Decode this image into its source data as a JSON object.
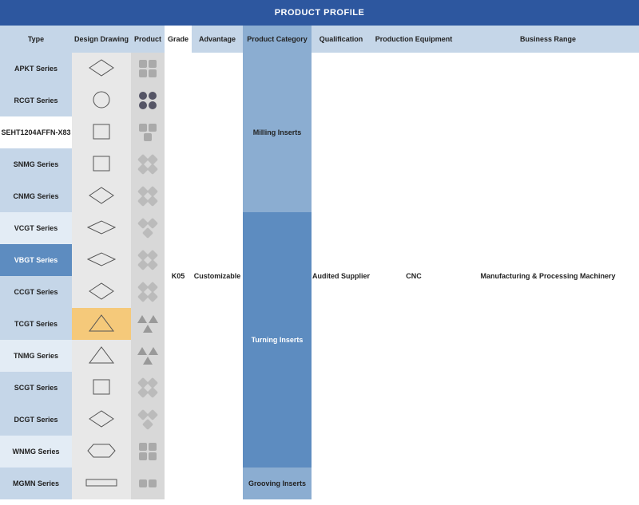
{
  "title": "PRODUCT PROFILE",
  "columns": {
    "type": "Type",
    "design": "Design Drawing",
    "product": "Product",
    "grade": "Grade",
    "advantage": "Advantage",
    "category": "Product Category",
    "qualification": "Qualification",
    "equipment": "Production Equipment",
    "business": "Business Range"
  },
  "widths": {
    "type": 90,
    "design": 74,
    "product": 42,
    "grade": 34,
    "advantage": 64,
    "category": 86,
    "qualification": 74,
    "equipment": 108,
    "business": 228
  },
  "header_bg": {
    "type": "bg-lightblue",
    "design": "bg-lightblue",
    "product": "bg-lightblue",
    "grade": "bg-white",
    "advantage": "bg-lightblue",
    "category": "bg-medblue",
    "qualification": "bg-lightblue",
    "equipment": "bg-lightblue",
    "business": "bg-lightblue"
  },
  "rows": [
    {
      "label": "APKT Series",
      "bg": "bg-lightblue",
      "shape": "rhomb",
      "pcs": [
        "sq",
        "sq",
        "sq",
        "sq"
      ]
    },
    {
      "label": "RCGT Series",
      "bg": "bg-lightblue",
      "shape": "circle",
      "pcs": [
        "round",
        "round",
        "round",
        "round"
      ]
    },
    {
      "label": "SEHT1204AFFN-X83",
      "bg": "bg-white",
      "shape": "square",
      "pcs": [
        "sq",
        "sq",
        "sq"
      ]
    },
    {
      "label": "SNMG Series",
      "bg": "bg-lightblue",
      "shape": "square",
      "pcs": [
        "dia",
        "dia",
        "dia",
        "dia"
      ]
    },
    {
      "label": "CNMG Series",
      "bg": "bg-lightblue",
      "shape": "rhomb",
      "pcs": [
        "dia",
        "dia",
        "dia",
        "dia"
      ]
    },
    {
      "label": "VCGT Series",
      "bg": "bg-vlight",
      "shape": "diamond",
      "pcs": [
        "dia",
        "dia",
        "dia"
      ]
    },
    {
      "label": "VBGT Series",
      "bg": "bg-darkblue",
      "shape": "diamond",
      "pcs": [
        "dia",
        "dia",
        "dia",
        "dia"
      ]
    },
    {
      "label": "CCGT Series",
      "bg": "bg-lightblue",
      "shape": "rhomb",
      "pcs": [
        "dia",
        "dia",
        "dia",
        "dia"
      ]
    },
    {
      "label": "TCGT Series",
      "bg": "bg-lightblue",
      "shape": "triangle",
      "pcs": [
        "tri",
        "tri",
        "tri"
      ],
      "tcgt": true
    },
    {
      "label": "TNMG Series",
      "bg": "bg-vlight",
      "shape": "triangle",
      "pcs": [
        "tri",
        "tri",
        "tri"
      ]
    },
    {
      "label": "SCGT Series",
      "bg": "bg-lightblue",
      "shape": "square",
      "pcs": [
        "dia",
        "dia",
        "dia",
        "dia"
      ]
    },
    {
      "label": "DCGT Series",
      "bg": "bg-lightblue",
      "shape": "rhomb",
      "pcs": [
        "dia",
        "dia",
        "dia"
      ]
    },
    {
      "label": "WNMG Series",
      "bg": "bg-vlight",
      "shape": "hex",
      "pcs": [
        "sq",
        "sq",
        "sq",
        "sq"
      ]
    },
    {
      "label": "MGMN Series",
      "bg": "bg-lightblue",
      "shape": "bar",
      "pcs": [
        "sq",
        "sq"
      ]
    }
  ],
  "merged": {
    "grade": "K05",
    "advantage": "Customizable",
    "qualification": "Audited Supplier",
    "equipment": "CNC",
    "business": "Manufacturing & Processing Machinery"
  },
  "categories": [
    {
      "label": "Milling Inserts",
      "rows": 5,
      "bg": "bg-medblue"
    },
    {
      "label": "Turning Inserts",
      "rows": 8,
      "bg": "bg-darkblue"
    },
    {
      "label": "Grooving Inserts",
      "rows": 1,
      "bg": "bg-medblue"
    }
  ],
  "colors": {
    "title_bg": "#2d579f",
    "lightblue": "#c5d6e8",
    "medblue": "#8badd1",
    "darkblue": "#5d8cc0",
    "vlight": "#e3ecf5",
    "white": "#ffffff",
    "tcgt": "#f5c97a"
  }
}
